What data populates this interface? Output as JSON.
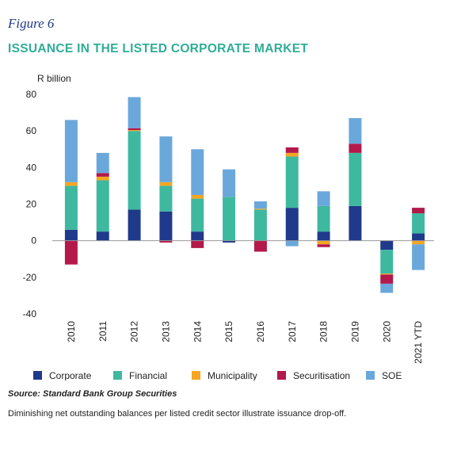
{
  "figure": {
    "label": "Figure 6",
    "title": "ISSUANCE IN THE LISTED CORPORATE MARKET",
    "source": "Source: Standard Bank Group Securities",
    "caption": "Diminishing net outstanding balances per listed credit sector illustrate issuance drop-off."
  },
  "chart_data": {
    "type": "bar",
    "stacked": true,
    "ylabel": "R billion",
    "ylim": [
      -40,
      80
    ],
    "yticks": [
      -40,
      -20,
      0,
      20,
      40,
      60,
      80
    ],
    "grid": false,
    "legend_position": "bottom",
    "categories": [
      "2010",
      "2011",
      "2012",
      "2013",
      "2014",
      "2015",
      "2016",
      "2017",
      "2018",
      "2019",
      "2020",
      "2021 YTD"
    ],
    "series": [
      {
        "name": "Corporate",
        "color": "#1f3a8a",
        "values": [
          6,
          5,
          17,
          16,
          5,
          -1,
          0,
          18,
          5,
          19,
          -5,
          4
        ]
      },
      {
        "name": "Financial",
        "color": "#3fb8a0",
        "values": [
          24,
          28,
          43,
          14,
          18,
          24,
          17,
          28,
          14,
          29,
          -13,
          11
        ]
      },
      {
        "name": "Municipality",
        "color": "#f5a623",
        "values": [
          2,
          2,
          0.5,
          2,
          2,
          0,
          0.5,
          2,
          -2,
          0,
          -0.5,
          -2
        ]
      },
      {
        "name": "Securitisation",
        "color": "#b3194a",
        "values": [
          -13,
          2,
          1,
          -1,
          -4,
          0,
          -6,
          3,
          -1.5,
          5,
          -5,
          3
        ]
      },
      {
        "name": "SOE",
        "color": "#6aa8dc",
        "values": [
          34,
          11,
          17,
          25,
          25,
          15,
          4,
          -3,
          8,
          14,
          -5,
          -14
        ]
      }
    ]
  }
}
